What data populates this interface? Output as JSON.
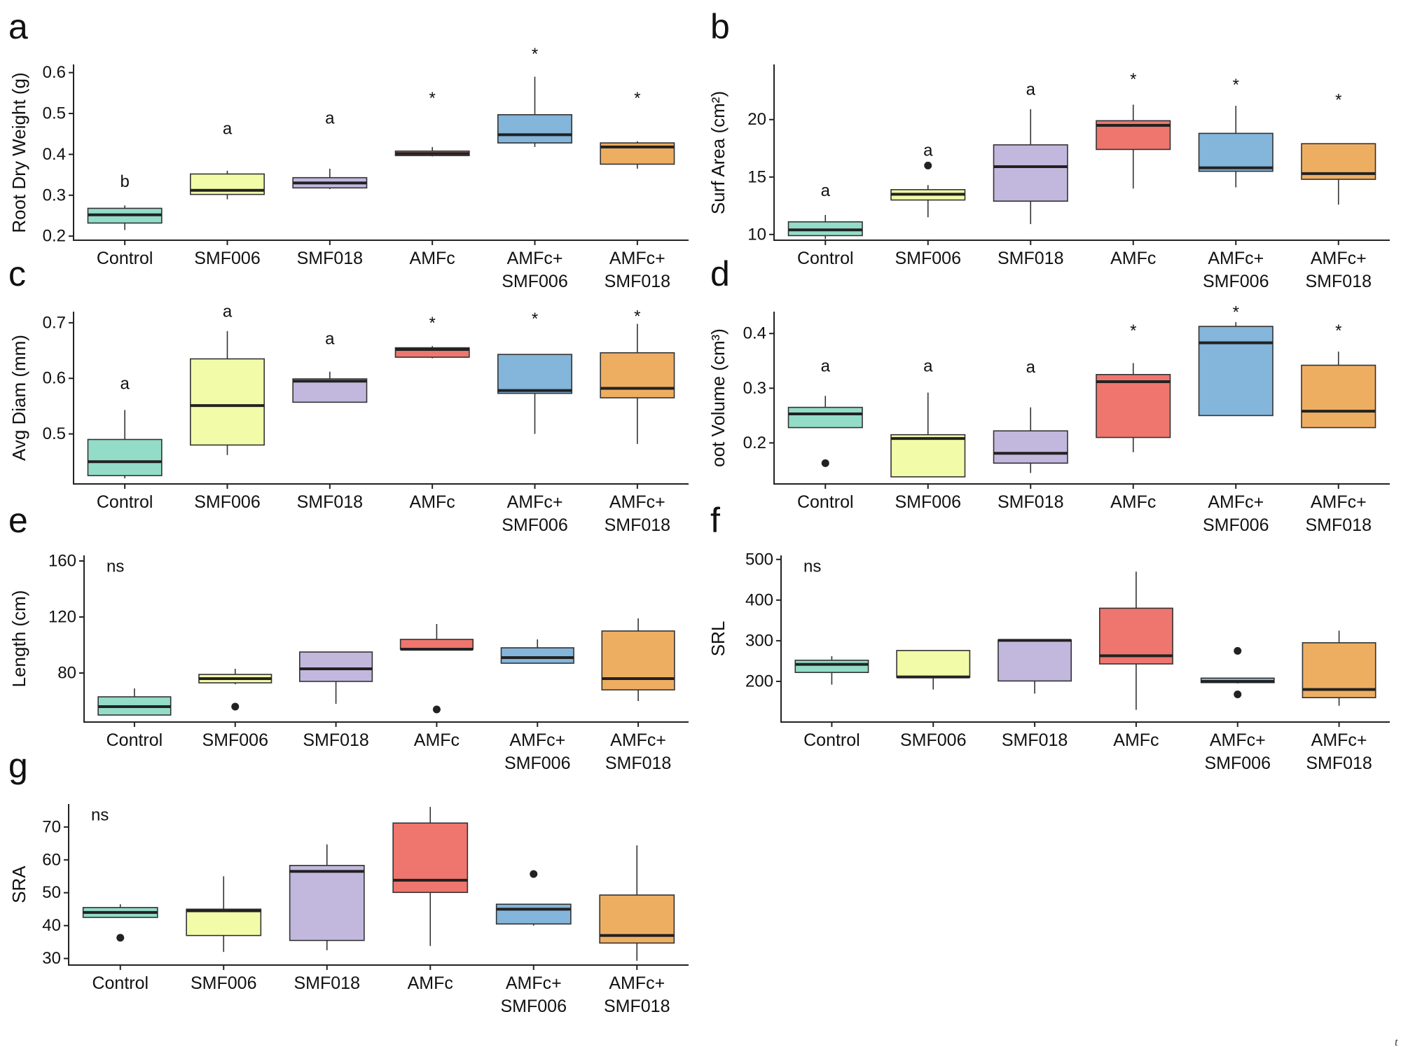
{
  "colors": {
    "Control": "#93dcc8",
    "SMF006": "#f2fba8",
    "SMF018": "#c2b8de",
    "AMFc": "#ee766e",
    "AMFc+SMF006": "#84b5da",
    "AMFc+SMF018": "#eeae62"
  },
  "corner_mark": "t",
  "chart_data": [
    {
      "panel": "a",
      "type": "box",
      "ylabel": "Root Dry Weight (g)",
      "ylim": [
        0.19,
        0.62
      ],
      "yticks": [
        0.2,
        0.3,
        0.4,
        0.5,
        0.6
      ],
      "ytick_labels": [
        "0.2",
        "0.3",
        "0.4",
        "0.5",
        "0.6"
      ],
      "categories": [
        "Control",
        "SMF006",
        "SMF018",
        "AMFc",
        "AMFc+SMF006",
        "AMFc+SMF018"
      ],
      "category_lines": [
        [
          "Control"
        ],
        [
          "SMF006"
        ],
        [
          "SMF018"
        ],
        [
          "AMFc"
        ],
        [
          "AMFc+",
          "SMF006"
        ],
        [
          "AMFc+",
          "SMF018"
        ]
      ],
      "boxes": [
        {
          "lo": 0.215,
          "q1": 0.232,
          "med": 0.252,
          "q3": 0.268,
          "hi": 0.275,
          "outliers": []
        },
        {
          "lo": 0.29,
          "q1": 0.302,
          "med": 0.312,
          "q3": 0.352,
          "hi": 0.36,
          "outliers": []
        },
        {
          "lo": 0.315,
          "q1": 0.318,
          "med": 0.33,
          "q3": 0.343,
          "hi": 0.365,
          "outliers": []
        },
        {
          "lo": 0.395,
          "q1": 0.397,
          "med": 0.402,
          "q3": 0.408,
          "hi": 0.418,
          "outliers": []
        },
        {
          "lo": 0.418,
          "q1": 0.428,
          "med": 0.448,
          "q3": 0.497,
          "hi": 0.59,
          "outliers": []
        },
        {
          "lo": 0.365,
          "q1": 0.376,
          "med": 0.418,
          "q3": 0.428,
          "hi": 0.432,
          "outliers": []
        }
      ],
      "sig_labels": [
        "b",
        "a",
        "a",
        "*",
        "*",
        "*"
      ],
      "sig_values": [
        0.333,
        0.462,
        0.488,
        0.537,
        0.645,
        0.537
      ],
      "ns_label": ""
    },
    {
      "panel": "b",
      "type": "box",
      "ylabel": "Surf Area (cm²)",
      "ylim": [
        9.5,
        24.8
      ],
      "yticks": [
        10,
        15,
        20
      ],
      "ytick_labels": [
        "10",
        "15",
        "20"
      ],
      "categories": [
        "Control",
        "SMF006",
        "SMF018",
        "AMFc",
        "AMFc+SMF006",
        "AMFc+SMF018"
      ],
      "category_lines": [
        [
          "Control"
        ],
        [
          "SMF006"
        ],
        [
          "SMF018"
        ],
        [
          "AMFc"
        ],
        [
          "AMFc+",
          "SMF006"
        ],
        [
          "AMFc+",
          "SMF018"
        ]
      ],
      "boxes": [
        {
          "lo": 9.6,
          "q1": 9.9,
          "med": 10.4,
          "q3": 11.1,
          "hi": 11.7,
          "outliers": []
        },
        {
          "lo": 11.5,
          "q1": 13.0,
          "med": 13.5,
          "q3": 13.9,
          "hi": 14.3,
          "outliers": [
            16.0
          ]
        },
        {
          "lo": 10.9,
          "q1": 12.9,
          "med": 15.9,
          "q3": 17.8,
          "hi": 20.9,
          "outliers": []
        },
        {
          "lo": 14.0,
          "q1": 17.4,
          "med": 19.5,
          "q3": 19.9,
          "hi": 21.3,
          "outliers": []
        },
        {
          "lo": 14.1,
          "q1": 15.5,
          "med": 15.8,
          "q3": 18.8,
          "hi": 21.2,
          "outliers": []
        },
        {
          "lo": 12.6,
          "q1": 14.8,
          "med": 15.3,
          "q3": 17.9,
          "hi": 17.9,
          "outliers": []
        }
      ],
      "sig_labels": [
        "a",
        "a",
        "a",
        "*",
        "*",
        "*"
      ],
      "sig_values": [
        13.8,
        17.3,
        22.6,
        23.5,
        23.0,
        21.7
      ],
      "ns_label": ""
    },
    {
      "panel": "c",
      "type": "box",
      "ylabel": "Avg Diam (mm)",
      "ylim": [
        0.41,
        0.72
      ],
      "yticks": [
        0.5,
        0.6,
        0.7
      ],
      "ytick_labels": [
        "0.5",
        "0.6",
        "0.7"
      ],
      "categories": [
        "Control",
        "SMF006",
        "SMF018",
        "AMFc",
        "AMFc+SMF006",
        "AMFc+SMF018"
      ],
      "category_lines": [
        [
          "Control"
        ],
        [
          "SMF006"
        ],
        [
          "SMF018"
        ],
        [
          "AMFc"
        ],
        [
          "AMFc+",
          "SMF006"
        ],
        [
          "AMFc+",
          "SMF018"
        ]
      ],
      "boxes": [
        {
          "lo": 0.42,
          "q1": 0.425,
          "med": 0.45,
          "q3": 0.49,
          "hi": 0.543,
          "outliers": []
        },
        {
          "lo": 0.462,
          "q1": 0.48,
          "med": 0.551,
          "q3": 0.635,
          "hi": 0.685,
          "outliers": []
        },
        {
          "lo": 0.557,
          "q1": 0.557,
          "med": 0.595,
          "q3": 0.599,
          "hi": 0.612,
          "outliers": []
        },
        {
          "lo": 0.636,
          "q1": 0.638,
          "med": 0.652,
          "q3": 0.655,
          "hi": 0.658,
          "outliers": []
        },
        {
          "lo": 0.5,
          "q1": 0.573,
          "med": 0.578,
          "q3": 0.643,
          "hi": 0.643,
          "outliers": []
        },
        {
          "lo": 0.482,
          "q1": 0.565,
          "med": 0.582,
          "q3": 0.646,
          "hi": 0.698,
          "outliers": []
        }
      ],
      "sig_labels": [
        "a",
        "a",
        "a",
        "*",
        "*",
        "*"
      ],
      "sig_values": [
        0.59,
        0.72,
        0.671,
        0.699,
        0.707,
        0.711
      ],
      "ns_label": ""
    },
    {
      "panel": "d",
      "type": "box",
      "ylabel": "oot Volume (cm³)",
      "ylim": [
        0.125,
        0.44
      ],
      "yticks": [
        0.2,
        0.3,
        0.4
      ],
      "ytick_labels": [
        "0.2",
        "0.3",
        "0.4"
      ],
      "categories": [
        "Control",
        "SMF006",
        "SMF018",
        "AMFc",
        "AMFc+SMF006",
        "AMFc+SMF018"
      ],
      "category_lines": [
        [
          "Control"
        ],
        [
          "SMF006"
        ],
        [
          "SMF018"
        ],
        [
          "AMFc"
        ],
        [
          "AMFc+",
          "SMF006"
        ],
        [
          "AMFc+",
          "SMF018"
        ]
      ],
      "boxes": [
        {
          "lo": 0.228,
          "q1": 0.228,
          "med": 0.253,
          "q3": 0.265,
          "hi": 0.286,
          "outliers": [
            0.163
          ]
        },
        {
          "lo": 0.138,
          "q1": 0.138,
          "med": 0.208,
          "q3": 0.215,
          "hi": 0.292,
          "outliers": []
        },
        {
          "lo": 0.145,
          "q1": 0.163,
          "med": 0.181,
          "q3": 0.222,
          "hi": 0.265,
          "outliers": []
        },
        {
          "lo": 0.183,
          "q1": 0.21,
          "med": 0.312,
          "q3": 0.325,
          "hi": 0.346,
          "outliers": []
        },
        {
          "lo": 0.25,
          "q1": 0.25,
          "med": 0.383,
          "q3": 0.413,
          "hi": 0.421,
          "outliers": []
        },
        {
          "lo": 0.228,
          "q1": 0.228,
          "med": 0.258,
          "q3": 0.342,
          "hi": 0.367,
          "outliers": []
        }
      ],
      "sig_labels": [
        "a",
        "a",
        "a",
        "*",
        "*",
        "*"
      ],
      "sig_values": [
        0.34,
        0.34,
        0.338,
        0.405,
        0.439,
        0.405
      ],
      "ns_label": ""
    },
    {
      "panel": "e",
      "type": "box",
      "ylabel": "Length (cm)",
      "ylim": [
        45,
        164
      ],
      "yticks": [
        80,
        120,
        160
      ],
      "ytick_labels": [
        "80",
        "120",
        "160"
      ],
      "categories": [
        "Control",
        "SMF006",
        "SMF018",
        "AMFc",
        "AMFc+SMF006",
        "AMFc+SMF018"
      ],
      "category_lines": [
        [
          "Control"
        ],
        [
          "SMF006"
        ],
        [
          "SMF018"
        ],
        [
          "AMFc"
        ],
        [
          "AMFc+",
          "SMF006"
        ],
        [
          "AMFc+",
          "SMF018"
        ]
      ],
      "boxes": [
        {
          "lo": 50,
          "q1": 50,
          "med": 56,
          "q3": 63,
          "hi": 69,
          "outliers": []
        },
        {
          "lo": 72,
          "q1": 73,
          "med": 76,
          "q3": 79,
          "hi": 83,
          "outliers": [
            56
          ]
        },
        {
          "lo": 58,
          "q1": 74,
          "med": 83,
          "q3": 95,
          "hi": 95,
          "outliers": []
        },
        {
          "lo": 97,
          "q1": 97,
          "med": 97,
          "q3": 104,
          "hi": 115,
          "outliers": [
            54
          ]
        },
        {
          "lo": 87,
          "q1": 87,
          "med": 91,
          "q3": 98,
          "hi": 104,
          "outliers": []
        },
        {
          "lo": 60,
          "q1": 68,
          "med": 76,
          "q3": 110,
          "hi": 119,
          "outliers": []
        }
      ],
      "sig_labels": [],
      "sig_values": [],
      "ns_label": "ns"
    },
    {
      "panel": "f",
      "type": "box",
      "ylabel": "SRL",
      "ylim": [
        100,
        510
      ],
      "yticks": [
        200,
        300,
        400,
        500
      ],
      "ytick_labels": [
        "200",
        "300",
        "400",
        "500"
      ],
      "categories": [
        "Control",
        "SMF006",
        "SMF018",
        "AMFc",
        "AMFc+SMF006",
        "AMFc+SMF018"
      ],
      "category_lines": [
        [
          "Control"
        ],
        [
          "SMF006"
        ],
        [
          "SMF018"
        ],
        [
          "AMFc"
        ],
        [
          "AMFc+",
          "SMF006"
        ],
        [
          "AMFc+",
          "SMF018"
        ]
      ],
      "boxes": [
        {
          "lo": 192,
          "q1": 222,
          "med": 242,
          "q3": 252,
          "hi": 262,
          "outliers": []
        },
        {
          "lo": 180,
          "q1": 210,
          "med": 211,
          "q3": 276,
          "hi": 276,
          "outliers": []
        },
        {
          "lo": 170,
          "q1": 201,
          "med": 301,
          "q3": 302,
          "hi": 302,
          "outliers": []
        },
        {
          "lo": 130,
          "q1": 243,
          "med": 263,
          "q3": 380,
          "hi": 470,
          "outliers": []
        },
        {
          "lo": 195,
          "q1": 197,
          "med": 200,
          "q3": 208,
          "hi": 208,
          "outliers": [
            275,
            168
          ]
        },
        {
          "lo": 140,
          "q1": 160,
          "med": 180,
          "q3": 295,
          "hi": 325,
          "outliers": []
        }
      ],
      "sig_labels": [],
      "sig_values": [],
      "ns_label": "ns"
    },
    {
      "panel": "g",
      "type": "box",
      "ylabel": "SRA",
      "ylim": [
        28,
        77
      ],
      "yticks": [
        30,
        40,
        50,
        60,
        70
      ],
      "ytick_labels": [
        "30",
        "40",
        "50",
        "60",
        "70"
      ],
      "categories": [
        "Control",
        "SMF006",
        "SMF018",
        "AMFc",
        "AMFc+SMF006",
        "AMFc+SMF018"
      ],
      "category_lines": [
        [
          "Control"
        ],
        [
          "SMF006"
        ],
        [
          "SMF018"
        ],
        [
          "AMFc"
        ],
        [
          "AMFc+",
          "SMF006"
        ],
        [
          "AMFc+",
          "SMF018"
        ]
      ],
      "boxes": [
        {
          "lo": 42.5,
          "q1": 42.5,
          "med": 44,
          "q3": 45.5,
          "hi": 46.5,
          "outliers": [
            36.3
          ]
        },
        {
          "lo": 32,
          "q1": 37,
          "med": 44.5,
          "q3": 45,
          "hi": 55,
          "outliers": []
        },
        {
          "lo": 32.5,
          "q1": 35.5,
          "med": 56.5,
          "q3": 58.3,
          "hi": 64.7,
          "outliers": []
        },
        {
          "lo": 33.8,
          "q1": 50.1,
          "med": 53.8,
          "q3": 71.2,
          "hi": 76.1,
          "outliers": []
        },
        {
          "lo": 40,
          "q1": 40.5,
          "med": 45,
          "q3": 46.5,
          "hi": 46.5,
          "outliers": [
            55.7
          ]
        },
        {
          "lo": 29.3,
          "q1": 34.7,
          "med": 37,
          "q3": 49.3,
          "hi": 64.4,
          "outliers": []
        }
      ],
      "sig_labels": [],
      "sig_values": [],
      "ns_label": "ns"
    }
  ]
}
